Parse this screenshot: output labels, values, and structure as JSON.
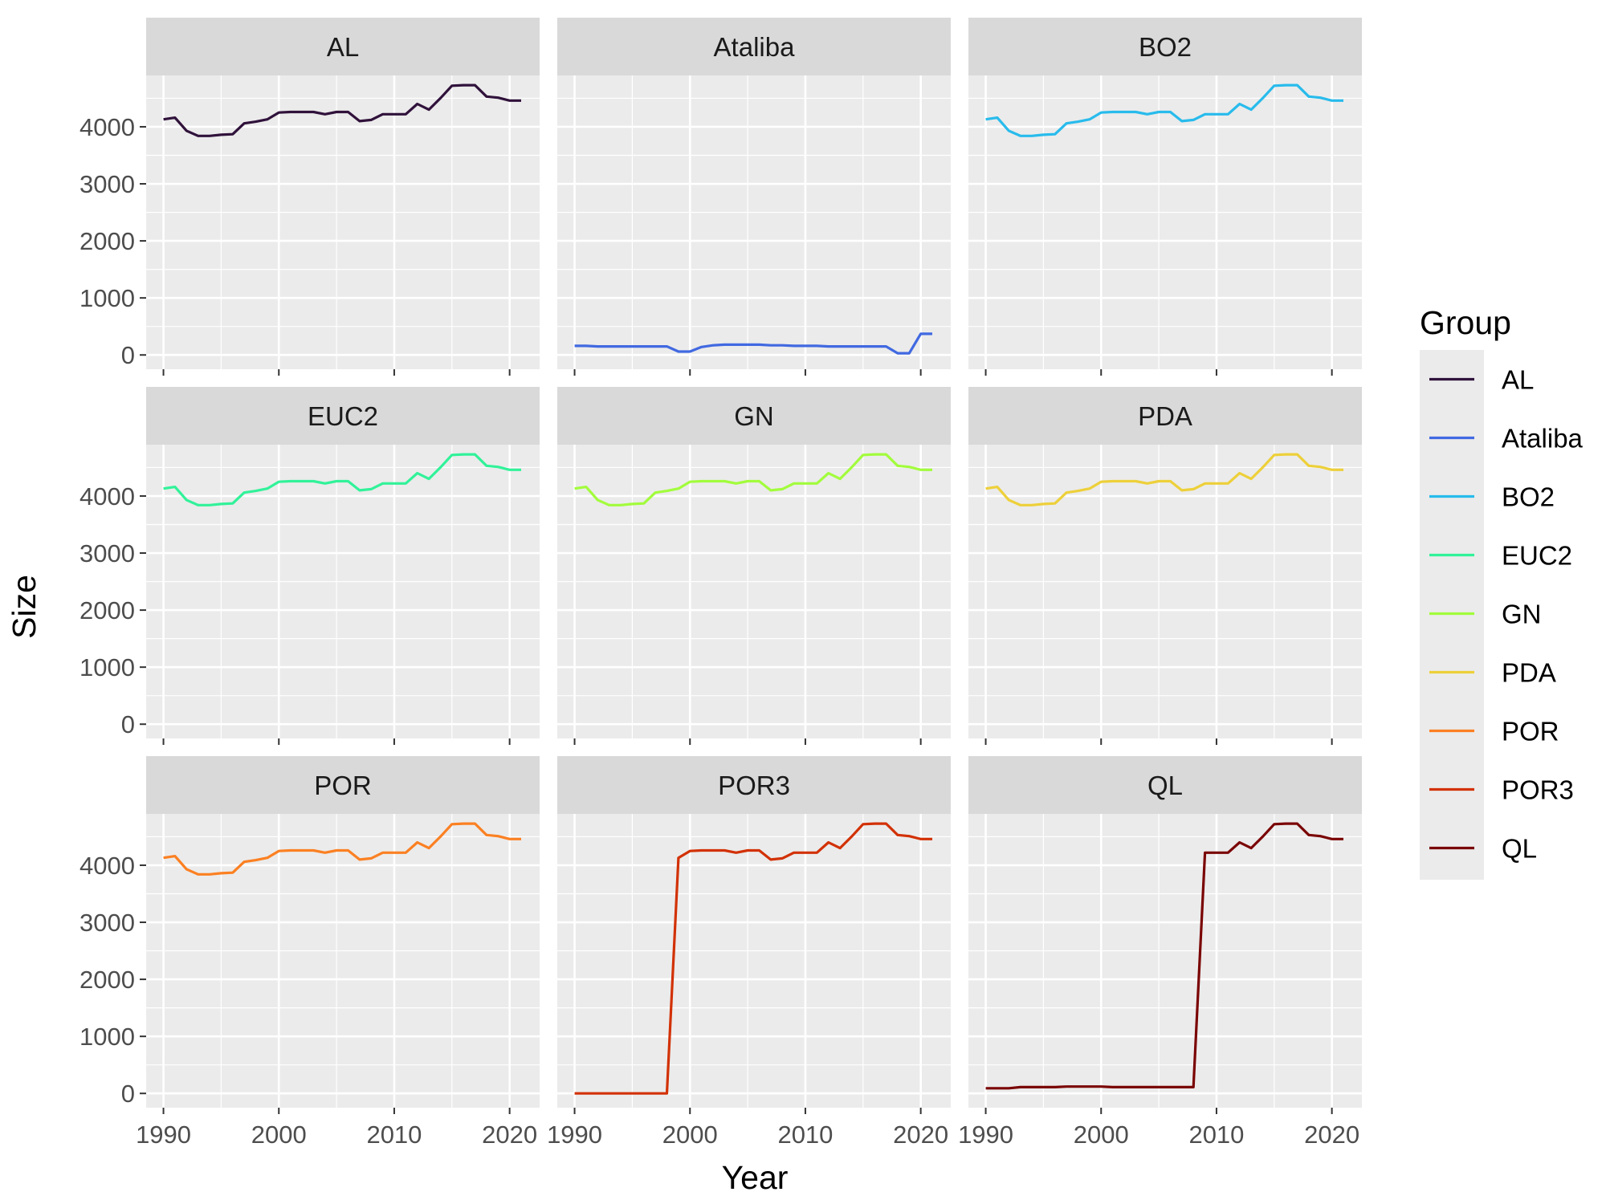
{
  "chart_data": {
    "type": "line",
    "xlabel": "Year",
    "ylabel": "Size",
    "xlim": [
      1988.5,
      2022.6
    ],
    "ylim": [
      -250,
      4900
    ],
    "x_ticks": [
      1990,
      2000,
      2010,
      2020
    ],
    "y_ticks": [
      0,
      1000,
      2000,
      3000,
      4000
    ],
    "grid": true,
    "legend": {
      "title": "Group",
      "placement": "right"
    },
    "x": [
      1990,
      1991,
      1992,
      1993,
      1994,
      1995,
      1996,
      1997,
      1998,
      1999,
      2000,
      2001,
      2002,
      2003,
      2004,
      2005,
      2006,
      2007,
      2008,
      2009,
      2010,
      2011,
      2012,
      2013,
      2014,
      2015,
      2016,
      2017,
      2018,
      2019,
      2020,
      2021
    ],
    "series": [
      {
        "name": "AL",
        "color": "#30123b",
        "values": [
          4130,
          4160,
          3930,
          3840,
          3840,
          3860,
          3870,
          4060,
          4090,
          4130,
          4250,
          4260,
          4260,
          4260,
          4220,
          4260,
          4260,
          4100,
          4120,
          4220,
          4220,
          4220,
          4400,
          4300,
          4500,
          4720,
          4730,
          4730,
          4530,
          4510,
          4460,
          4460
        ]
      },
      {
        "name": "Ataliba",
        "color": "#4169e1",
        "values": [
          160,
          160,
          150,
          150,
          150,
          150,
          150,
          150,
          150,
          60,
          60,
          140,
          170,
          180,
          180,
          180,
          180,
          170,
          170,
          160,
          160,
          160,
          150,
          150,
          150,
          150,
          150,
          150,
          30,
          30,
          370,
          370
        ]
      },
      {
        "name": "BO2",
        "color": "#28bbec",
        "values": [
          4130,
          4160,
          3930,
          3840,
          3840,
          3860,
          3870,
          4060,
          4090,
          4130,
          4250,
          4260,
          4260,
          4260,
          4220,
          4260,
          4260,
          4100,
          4120,
          4220,
          4220,
          4220,
          4400,
          4300,
          4500,
          4720,
          4730,
          4730,
          4530,
          4510,
          4460,
          4460
        ]
      },
      {
        "name": "EUC2",
        "color": "#31f299",
        "values": [
          4130,
          4160,
          3930,
          3840,
          3840,
          3860,
          3870,
          4060,
          4090,
          4130,
          4250,
          4260,
          4260,
          4260,
          4220,
          4260,
          4260,
          4100,
          4120,
          4220,
          4220,
          4220,
          4400,
          4300,
          4500,
          4720,
          4730,
          4730,
          4530,
          4510,
          4460,
          4460
        ]
      },
      {
        "name": "GN",
        "color": "#a2fc3c",
        "values": [
          4130,
          4160,
          3930,
          3840,
          3840,
          3860,
          3870,
          4060,
          4090,
          4130,
          4250,
          4260,
          4260,
          4260,
          4220,
          4260,
          4260,
          4100,
          4120,
          4220,
          4220,
          4220,
          4400,
          4300,
          4500,
          4720,
          4730,
          4730,
          4530,
          4510,
          4460,
          4460
        ]
      },
      {
        "name": "PDA",
        "color": "#edd03a",
        "values": [
          4130,
          4160,
          3930,
          3840,
          3840,
          3860,
          3870,
          4060,
          4090,
          4130,
          4250,
          4260,
          4260,
          4260,
          4220,
          4260,
          4260,
          4100,
          4120,
          4220,
          4220,
          4220,
          4400,
          4300,
          4500,
          4720,
          4730,
          4730,
          4530,
          4510,
          4460,
          4460
        ]
      },
      {
        "name": "POR",
        "color": "#fb8022",
        "values": [
          4130,
          4160,
          3930,
          3840,
          3840,
          3860,
          3870,
          4060,
          4090,
          4130,
          4250,
          4260,
          4260,
          4260,
          4220,
          4260,
          4260,
          4100,
          4120,
          4220,
          4220,
          4220,
          4400,
          4300,
          4500,
          4720,
          4730,
          4730,
          4530,
          4510,
          4460,
          4460
        ]
      },
      {
        "name": "POR3",
        "color": "#d23105",
        "values": [
          0,
          0,
          0,
          0,
          0,
          0,
          0,
          0,
          0,
          4130,
          4250,
          4260,
          4260,
          4260,
          4220,
          4260,
          4260,
          4100,
          4120,
          4220,
          4220,
          4220,
          4400,
          4300,
          4500,
          4720,
          4730,
          4730,
          4530,
          4510,
          4460,
          4460
        ]
      },
      {
        "name": "QL",
        "color": "#7a0403",
        "values": [
          90,
          90,
          90,
          110,
          110,
          110,
          110,
          120,
          120,
          120,
          120,
          110,
          110,
          110,
          110,
          110,
          110,
          110,
          110,
          4220,
          4220,
          4220,
          4400,
          4300,
          4500,
          4720,
          4730,
          4730,
          4530,
          4510,
          4460,
          4460
        ]
      }
    ]
  }
}
